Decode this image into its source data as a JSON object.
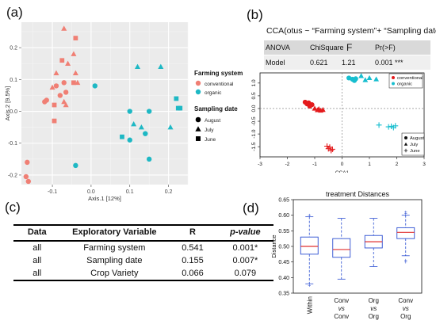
{
  "panel_labels": {
    "a": "(a)",
    "b": "(b)",
    "c": "(c)",
    "d": "(d)"
  },
  "colors": {
    "conventional": "#f07f74",
    "organic": "#1eb8c4",
    "cca_conventional": "#e41a1c",
    "cca_organic": "#17becf",
    "box": "#2a4dd1",
    "median": "#e03030",
    "pcoa_panel_bg": "#ebebeb",
    "anova_header_bg": "#d9d9d9",
    "anova_row_bg": "#efefef"
  },
  "chart_data": [
    {
      "id": "pcoa",
      "type": "scatter",
      "xlabel": "Axis.1  [12%]",
      "ylabel": "Axis.2  [9.5%]",
      "xlim": [
        -0.18,
        0.25
      ],
      "ylim": [
        -0.23,
        0.28
      ],
      "xticks": [
        -0.1,
        0.0,
        0.1,
        0.2
      ],
      "xtick_labels": [
        "-0.1",
        "0.0",
        "0.1",
        "0.2"
      ],
      "yticks": [
        -0.2,
        -0.1,
        0.0,
        0.1,
        0.2
      ],
      "ytick_labels": [
        "-0.2",
        "-0.1",
        "0.0",
        "0.1",
        "0.2"
      ],
      "grid": true,
      "legend": {
        "position": "right",
        "color_title": "Farming system",
        "color_items": [
          "conventional",
          "organic"
        ],
        "shape_title": "Sampling date",
        "shape_items": [
          "August",
          "July",
          "June"
        ]
      },
      "points": [
        {
          "x": -0.07,
          "y": 0.26,
          "g": "conventional",
          "s": "July"
        },
        {
          "x": -0.04,
          "y": 0.23,
          "g": "conventional",
          "s": "June"
        },
        {
          "x": -0.045,
          "y": 0.18,
          "g": "conventional",
          "s": "July"
        },
        {
          "x": -0.075,
          "y": 0.16,
          "g": "conventional",
          "s": "June"
        },
        {
          "x": -0.06,
          "y": 0.15,
          "g": "conventional",
          "s": "July"
        },
        {
          "x": -0.09,
          "y": 0.12,
          "g": "conventional",
          "s": "July"
        },
        {
          "x": -0.04,
          "y": 0.12,
          "g": "conventional",
          "s": "July"
        },
        {
          "x": -0.045,
          "y": 0.09,
          "g": "conventional",
          "s": "June"
        },
        {
          "x": -0.035,
          "y": 0.09,
          "g": "conventional",
          "s": "July"
        },
        {
          "x": -0.07,
          "y": 0.09,
          "g": "conventional",
          "s": "August"
        },
        {
          "x": -0.09,
          "y": 0.08,
          "g": "conventional",
          "s": "August"
        },
        {
          "x": -0.1,
          "y": 0.075,
          "g": "conventional",
          "s": "July"
        },
        {
          "x": -0.065,
          "y": 0.06,
          "g": "conventional",
          "s": "August"
        },
        {
          "x": -0.08,
          "y": 0.05,
          "g": "conventional",
          "s": "August"
        },
        {
          "x": -0.12,
          "y": 0.03,
          "g": "conventional",
          "s": "August"
        },
        {
          "x": -0.115,
          "y": 0.035,
          "g": "conventional",
          "s": "August"
        },
        {
          "x": -0.07,
          "y": 0.03,
          "g": "conventional",
          "s": "July"
        },
        {
          "x": -0.095,
          "y": 0.02,
          "g": "conventional",
          "s": "June"
        },
        {
          "x": -0.065,
          "y": 0.02,
          "g": "conventional",
          "s": "July"
        },
        {
          "x": -0.095,
          "y": -0.03,
          "g": "conventional",
          "s": "June"
        },
        {
          "x": -0.165,
          "y": -0.16,
          "g": "conventional",
          "s": "August"
        },
        {
          "x": -0.168,
          "y": -0.205,
          "g": "conventional",
          "s": "August"
        },
        {
          "x": -0.162,
          "y": -0.22,
          "g": "conventional",
          "s": "August"
        },
        {
          "x": 0.01,
          "y": 0.08,
          "g": "organic",
          "s": "August"
        },
        {
          "x": 0.12,
          "y": 0.14,
          "g": "organic",
          "s": "July"
        },
        {
          "x": 0.18,
          "y": 0.14,
          "g": "organic",
          "s": "July"
        },
        {
          "x": 0.22,
          "y": 0.04,
          "g": "organic",
          "s": "June"
        },
        {
          "x": 0.23,
          "y": 0.01,
          "g": "organic",
          "s": "June"
        },
        {
          "x": 0.225,
          "y": 0.01,
          "g": "organic",
          "s": "June"
        },
        {
          "x": 0.1,
          "y": 0.0,
          "g": "organic",
          "s": "August"
        },
        {
          "x": 0.15,
          "y": 0.0,
          "g": "organic",
          "s": "August"
        },
        {
          "x": 0.11,
          "y": -0.04,
          "g": "organic",
          "s": "July"
        },
        {
          "x": 0.13,
          "y": -0.05,
          "g": "organic",
          "s": "July"
        },
        {
          "x": 0.205,
          "y": -0.05,
          "g": "organic",
          "s": "July"
        },
        {
          "x": 0.14,
          "y": -0.07,
          "g": "organic",
          "s": "August"
        },
        {
          "x": 0.08,
          "y": -0.08,
          "g": "organic",
          "s": "June"
        },
        {
          "x": 0.1,
          "y": -0.09,
          "g": "organic",
          "s": "August"
        },
        {
          "x": -0.04,
          "y": -0.17,
          "g": "organic",
          "s": "August"
        },
        {
          "x": 0.15,
          "y": -0.15,
          "g": "organic",
          "s": "August"
        }
      ]
    },
    {
      "id": "cca",
      "type": "scatter",
      "title": "CCA(otus ~ “Farming system”+ “Sampling date”)",
      "xlabel": "CCA1",
      "xlim": [
        -3,
        3
      ],
      "ylim": [
        -1.9,
        1.4
      ],
      "xticks": [
        -3,
        -2,
        -1,
        0,
        1,
        2,
        3
      ],
      "xtick_labels": [
        "-3",
        "-2",
        "-1",
        "0",
        "1",
        "2",
        "3"
      ],
      "yticks": [
        1.0,
        0.5,
        0.0,
        -0.5,
        -1.0,
        -1.5
      ],
      "ytick_labels": [
        "1.0",
        "0.5",
        "0.0",
        "-0.5",
        "-1.0",
        "-1.5"
      ],
      "grid": false,
      "reference_lines": {
        "x": 0,
        "y": 0,
        "style": "dashed"
      },
      "legend_color": {
        "position": "top-right",
        "items": [
          "conventional",
          "organic"
        ]
      },
      "legend_shape": {
        "position": "bottom-right",
        "items": [
          "August",
          "July",
          "June"
        ]
      },
      "points": [
        {
          "x": -1.35,
          "y": 0.25,
          "g": "conventional",
          "s": "August"
        },
        {
          "x": -1.22,
          "y": 0.22,
          "g": "conventional",
          "s": "August"
        },
        {
          "x": -1.28,
          "y": 0.18,
          "g": "conventional",
          "s": "August"
        },
        {
          "x": -1.1,
          "y": 0.15,
          "g": "conventional",
          "s": "August"
        },
        {
          "x": -1.18,
          "y": 0.09,
          "g": "conventional",
          "s": "August"
        },
        {
          "x": -1.0,
          "y": 0.0,
          "g": "conventional",
          "s": "July"
        },
        {
          "x": -0.85,
          "y": -0.02,
          "g": "conventional",
          "s": "July"
        },
        {
          "x": -0.9,
          "y": -0.06,
          "g": "conventional",
          "s": "July"
        },
        {
          "x": -0.7,
          "y": -0.05,
          "g": "conventional",
          "s": "July"
        },
        {
          "x": -0.78,
          "y": -0.08,
          "g": "conventional",
          "s": "July"
        },
        {
          "x": -0.55,
          "y": -1.48,
          "g": "conventional",
          "s": "June"
        },
        {
          "x": -0.5,
          "y": -1.58,
          "g": "conventional",
          "s": "June"
        },
        {
          "x": -0.45,
          "y": -1.52,
          "g": "conventional",
          "s": "June"
        },
        {
          "x": -0.4,
          "y": -1.65,
          "g": "conventional",
          "s": "June"
        },
        {
          "x": -0.35,
          "y": -1.6,
          "g": "conventional",
          "s": "June"
        },
        {
          "x": 0.25,
          "y": 1.2,
          "g": "organic",
          "s": "August"
        },
        {
          "x": 0.38,
          "y": 1.15,
          "g": "organic",
          "s": "August"
        },
        {
          "x": 0.5,
          "y": 1.17,
          "g": "organic",
          "s": "August"
        },
        {
          "x": 0.45,
          "y": 1.1,
          "g": "organic",
          "s": "August"
        },
        {
          "x": 0.7,
          "y": 1.28,
          "g": "organic",
          "s": "July"
        },
        {
          "x": 0.85,
          "y": 1.12,
          "g": "organic",
          "s": "July"
        },
        {
          "x": 1.0,
          "y": 1.2,
          "g": "organic",
          "s": "July"
        },
        {
          "x": 1.25,
          "y": 1.15,
          "g": "organic",
          "s": "July"
        },
        {
          "x": 1.35,
          "y": -0.65,
          "g": "organic",
          "s": "June"
        },
        {
          "x": 1.7,
          "y": -0.72,
          "g": "organic",
          "s": "June"
        },
        {
          "x": 1.8,
          "y": -0.7,
          "g": "organic",
          "s": "June"
        },
        {
          "x": 1.88,
          "y": -0.75,
          "g": "organic",
          "s": "June"
        },
        {
          "x": 1.95,
          "y": -0.68,
          "g": "organic",
          "s": "June"
        }
      ]
    },
    {
      "id": "distances",
      "type": "box",
      "title": "treatment Distances",
      "ylabel": "Distance",
      "ylim": [
        0.35,
        0.65
      ],
      "yticks": [
        0.35,
        0.4,
        0.45,
        0.5,
        0.55,
        0.6,
        0.65
      ],
      "ytick_labels": [
        "0.35",
        "0.40",
        "0.45",
        "0.50",
        "0.55",
        "0.60",
        "0.65"
      ],
      "grid": false,
      "categories": [
        {
          "lines": [
            "Within"
          ],
          "italic": []
        },
        {
          "lines": [
            "Conv",
            "vs",
            "Conv"
          ],
          "italic": [
            1
          ]
        },
        {
          "lines": [
            "Org",
            "vs",
            "Org"
          ],
          "italic": [
            1
          ]
        },
        {
          "lines": [
            "Conv",
            "vs",
            "Org"
          ],
          "italic": [
            1
          ]
        }
      ],
      "boxes": [
        {
          "whisker_low": 0.38,
          "q1": 0.475,
          "median": 0.5,
          "q3": 0.53,
          "whisker_high": 0.595,
          "outliers": [
            0.375,
            0.6
          ]
        },
        {
          "whisker_low": 0.395,
          "q1": 0.465,
          "median": 0.49,
          "q3": 0.525,
          "whisker_high": 0.59,
          "outliers": []
        },
        {
          "whisker_low": 0.435,
          "q1": 0.495,
          "median": 0.515,
          "q3": 0.535,
          "whisker_high": 0.59,
          "outliers": []
        },
        {
          "whisker_low": 0.47,
          "q1": 0.525,
          "median": 0.545,
          "q3": 0.56,
          "whisker_high": 0.6,
          "outliers": [
            0.455,
            0.45,
            0.605,
            0.61
          ]
        }
      ]
    }
  ],
  "anova": {
    "headers": [
      "ANOVA",
      "ChiSquare",
      "F",
      "Pr(>F)"
    ],
    "row": [
      "Model",
      "0.621",
      "1.21",
      "0.001 ***"
    ]
  },
  "stats_table": {
    "headers": [
      "Data",
      "Exploratory Variable",
      "R",
      "p-value"
    ],
    "rows": [
      [
        "all",
        "Farming system",
        "0.541",
        "0.001*"
      ],
      [
        "all",
        "Sampling date",
        "0.155",
        "0.007*"
      ],
      [
        "all",
        "Crop Variety",
        "0.066",
        "0.079"
      ]
    ]
  }
}
